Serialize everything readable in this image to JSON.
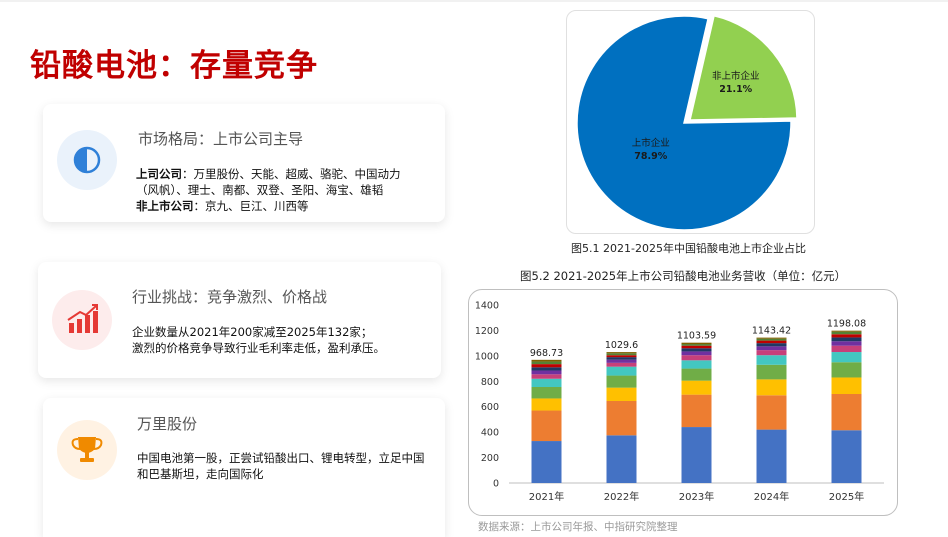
{
  "title": "铅酸电池：存量竞争",
  "cards": [
    {
      "heading": "市场格局：上市公司主导",
      "icon": "half-circle-icon",
      "listed_label": "上司公司",
      "listed_text": "：万里股份、天能、超威、骆驼、中国动力",
      "listed_text2": "（风帆）、理士、南都、双登、圣阳、海宝、雄韬",
      "unlisted_label": "非上市公司",
      "unlisted_text": "：京九、巨江、川西等"
    },
    {
      "heading": "行业挑战：竞争激烈、价格战",
      "icon": "rising-bar-chart-icon",
      "line1": "企业数量从2021年200家减至2025年132家；",
      "line2": "激烈的价格竞争导致行业毛利率走低，盈利承压。"
    },
    {
      "heading": "万里股份",
      "icon": "trophy-icon",
      "line1": "中国电池第一股，正尝试铅酸出口、锂电转型，立足中国",
      "line2": "和巴基斯坦，走向国际化"
    }
  ],
  "colors": {
    "title": "#c00000",
    "pie_listed": "#0070c0",
    "pie_unlisted": "#92d050",
    "bar_stack": [
      "#4472c4",
      "#ed7d31",
      "#ffc000",
      "#70ad47",
      "#43c7c1",
      "#c7407a",
      "#7030a0",
      "#203864",
      "#c00000",
      "#548235",
      "#7f6000"
    ]
  },
  "chart_data": [
    {
      "type": "pie",
      "title": "图5.1 2021-2025年中国铅酸电池上市企业占比",
      "slices": [
        {
          "name": "上市企业",
          "value": 78.9,
          "label": "78.9%"
        },
        {
          "name": "非上市企业",
          "value": 21.1,
          "label": "21.1%"
        }
      ]
    },
    {
      "type": "bar",
      "stacked": true,
      "title": "图5.2 2021-2025年上市公司铅酸电池业务营收（单位：亿元）",
      "categories": [
        "2021年",
        "2022年",
        "2023年",
        "2024年",
        "2025年"
      ],
      "totals": [
        968.73,
        1029.6,
        1103.59,
        1143.42,
        1198.08
      ],
      "total_labels": [
        "968.73",
        "1029.6",
        "1103.59",
        "1143.42",
        "1198.08"
      ],
      "stack_segments": [
        [
          330,
          240,
          95,
          90,
          65,
          35,
          30,
          25,
          25,
          20,
          13.73
        ],
        [
          375,
          270,
          105,
          95,
          70,
          30,
          25,
          20,
          15,
          15,
          9.6
        ],
        [
          440,
          255,
          110,
          95,
          65,
          40,
          30,
          25,
          20,
          13,
          10.59
        ],
        [
          420,
          270,
          125,
          115,
          75,
          40,
          30,
          25,
          20,
          15,
          8.42
        ],
        [
          415,
          285,
          130,
          120,
          80,
          50,
          35,
          30,
          25,
          20,
          8.08
        ]
      ],
      "yticks": [
        0,
        200,
        400,
        600,
        800,
        1000,
        1200,
        1400
      ],
      "ylim": [
        0,
        1400
      ],
      "grid": false,
      "source": "数据来源：上市公司年报、中指研究院整理"
    }
  ]
}
